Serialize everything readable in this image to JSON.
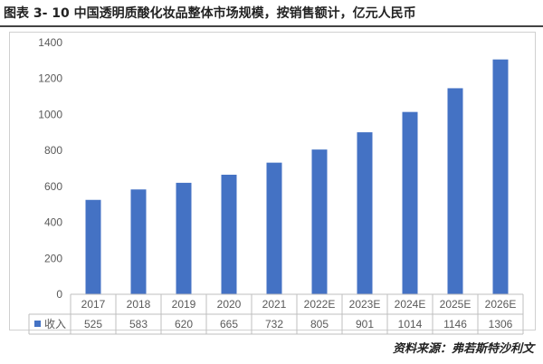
{
  "title": "图表 3- 10 中国透明质酸化妆品整体市场规模，按销售额计，亿元人民币",
  "source": "资料来源：弗若斯特沙利文",
  "chart_data": {
    "type": "bar",
    "categories": [
      "2017",
      "2018",
      "2019",
      "2020",
      "2021",
      "2022E",
      "2023E",
      "2024E",
      "2025E",
      "2026E"
    ],
    "series": [
      {
        "name": "收入",
        "values": [
          525,
          583,
          620,
          665,
          732,
          805,
          901,
          1014,
          1146,
          1306
        ],
        "color": "#4472c4"
      }
    ],
    "ylim": [
      0,
      1400
    ],
    "yticks": [
      0,
      200,
      400,
      600,
      800,
      1000,
      1200,
      1400
    ],
    "grid": false,
    "legend": "data-table",
    "data_table": true
  }
}
